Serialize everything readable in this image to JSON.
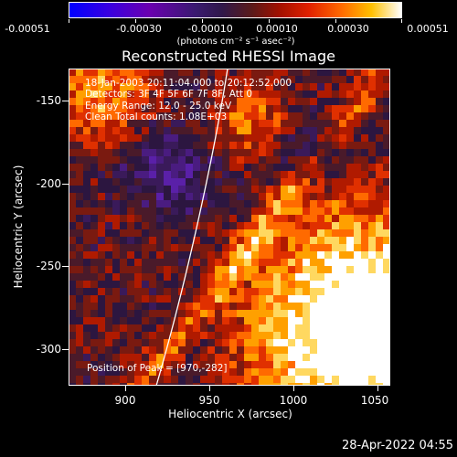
{
  "colorbar": {
    "tick_labels": [
      "-0.00051",
      "-0.00030",
      "-0.00010",
      "0.00010",
      "0.00030",
      "0.00051"
    ],
    "units": "(photons cm⁻² s⁻¹ asec⁻²)"
  },
  "title": "Reconstructed RHESSI Image",
  "info": {
    "time": "18-Jan-2003 20:11:04.000 to 20:12:52.000",
    "detectors": "Detectors: 3F 4F 5F 6F 7F 8F, Att 0",
    "energy": "Energy Range: 12.0 - 25.0 keV",
    "clean": "Clean    Total counts: 1.08E+03"
  },
  "peak": "Position of Peak = [970,-282]",
  "x_axis": {
    "label": "Heliocentric X (arcsec)",
    "ticks": [
      "900",
      "950",
      "1000",
      "1050"
    ],
    "tick_values": [
      900,
      950,
      1000,
      1050
    ],
    "range": [
      866,
      1057
    ]
  },
  "y_axis": {
    "label": "Heliocentric Y (arcsec)",
    "ticks": [
      "-150",
      "-200",
      "-250",
      "-300"
    ],
    "tick_values": [
      -150,
      -200,
      -250,
      -300
    ],
    "range": [
      -322,
      -133
    ]
  },
  "footer_timestamp": "28-Apr-2022 04:55",
  "colors": {
    "background": "#000000",
    "limb_line": "#ffffff",
    "low": "#0000ff",
    "mid": "#30184a",
    "high": "#ffffff"
  }
}
